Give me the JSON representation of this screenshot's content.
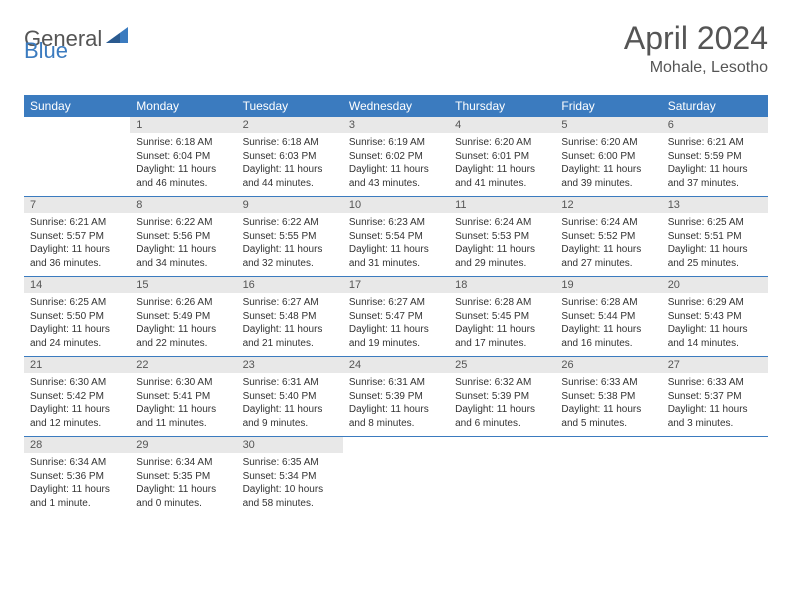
{
  "logo": {
    "general": "General",
    "blue": "Blue"
  },
  "title": "April 2024",
  "location": "Mohale, Lesotho",
  "colors": {
    "header_bg": "#3b7bbf",
    "header_text": "#ffffff",
    "daynum_bg": "#e8e8e8",
    "text": "#333333",
    "separator": "#3b7bbf",
    "background": "#ffffff"
  },
  "weekdays": [
    "Sunday",
    "Monday",
    "Tuesday",
    "Wednesday",
    "Thursday",
    "Friday",
    "Saturday"
  ],
  "weeks": [
    {
      "days": [
        null,
        {
          "n": "1",
          "sr": "6:18 AM",
          "ss": "6:04 PM",
          "dl": "11 hours and 46 minutes."
        },
        {
          "n": "2",
          "sr": "6:18 AM",
          "ss": "6:03 PM",
          "dl": "11 hours and 44 minutes."
        },
        {
          "n": "3",
          "sr": "6:19 AM",
          "ss": "6:02 PM",
          "dl": "11 hours and 43 minutes."
        },
        {
          "n": "4",
          "sr": "6:20 AM",
          "ss": "6:01 PM",
          "dl": "11 hours and 41 minutes."
        },
        {
          "n": "5",
          "sr": "6:20 AM",
          "ss": "6:00 PM",
          "dl": "11 hours and 39 minutes."
        },
        {
          "n": "6",
          "sr": "6:21 AM",
          "ss": "5:59 PM",
          "dl": "11 hours and 37 minutes."
        }
      ]
    },
    {
      "days": [
        {
          "n": "7",
          "sr": "6:21 AM",
          "ss": "5:57 PM",
          "dl": "11 hours and 36 minutes."
        },
        {
          "n": "8",
          "sr": "6:22 AM",
          "ss": "5:56 PM",
          "dl": "11 hours and 34 minutes."
        },
        {
          "n": "9",
          "sr": "6:22 AM",
          "ss": "5:55 PM",
          "dl": "11 hours and 32 minutes."
        },
        {
          "n": "10",
          "sr": "6:23 AM",
          "ss": "5:54 PM",
          "dl": "11 hours and 31 minutes."
        },
        {
          "n": "11",
          "sr": "6:24 AM",
          "ss": "5:53 PM",
          "dl": "11 hours and 29 minutes."
        },
        {
          "n": "12",
          "sr": "6:24 AM",
          "ss": "5:52 PM",
          "dl": "11 hours and 27 minutes."
        },
        {
          "n": "13",
          "sr": "6:25 AM",
          "ss": "5:51 PM",
          "dl": "11 hours and 25 minutes."
        }
      ]
    },
    {
      "days": [
        {
          "n": "14",
          "sr": "6:25 AM",
          "ss": "5:50 PM",
          "dl": "11 hours and 24 minutes."
        },
        {
          "n": "15",
          "sr": "6:26 AM",
          "ss": "5:49 PM",
          "dl": "11 hours and 22 minutes."
        },
        {
          "n": "16",
          "sr": "6:27 AM",
          "ss": "5:48 PM",
          "dl": "11 hours and 21 minutes."
        },
        {
          "n": "17",
          "sr": "6:27 AM",
          "ss": "5:47 PM",
          "dl": "11 hours and 19 minutes."
        },
        {
          "n": "18",
          "sr": "6:28 AM",
          "ss": "5:45 PM",
          "dl": "11 hours and 17 minutes."
        },
        {
          "n": "19",
          "sr": "6:28 AM",
          "ss": "5:44 PM",
          "dl": "11 hours and 16 minutes."
        },
        {
          "n": "20",
          "sr": "6:29 AM",
          "ss": "5:43 PM",
          "dl": "11 hours and 14 minutes."
        }
      ]
    },
    {
      "days": [
        {
          "n": "21",
          "sr": "6:30 AM",
          "ss": "5:42 PM",
          "dl": "11 hours and 12 minutes."
        },
        {
          "n": "22",
          "sr": "6:30 AM",
          "ss": "5:41 PM",
          "dl": "11 hours and 11 minutes."
        },
        {
          "n": "23",
          "sr": "6:31 AM",
          "ss": "5:40 PM",
          "dl": "11 hours and 9 minutes."
        },
        {
          "n": "24",
          "sr": "6:31 AM",
          "ss": "5:39 PM",
          "dl": "11 hours and 8 minutes."
        },
        {
          "n": "25",
          "sr": "6:32 AM",
          "ss": "5:39 PM",
          "dl": "11 hours and 6 minutes."
        },
        {
          "n": "26",
          "sr": "6:33 AM",
          "ss": "5:38 PM",
          "dl": "11 hours and 5 minutes."
        },
        {
          "n": "27",
          "sr": "6:33 AM",
          "ss": "5:37 PM",
          "dl": "11 hours and 3 minutes."
        }
      ]
    },
    {
      "days": [
        {
          "n": "28",
          "sr": "6:34 AM",
          "ss": "5:36 PM",
          "dl": "11 hours and 1 minute."
        },
        {
          "n": "29",
          "sr": "6:34 AM",
          "ss": "5:35 PM",
          "dl": "11 hours and 0 minutes."
        },
        {
          "n": "30",
          "sr": "6:35 AM",
          "ss": "5:34 PM",
          "dl": "10 hours and 58 minutes."
        },
        null,
        null,
        null,
        null
      ]
    }
  ],
  "labels": {
    "sunrise": "Sunrise:",
    "sunset": "Sunset:",
    "daylight": "Daylight:"
  }
}
